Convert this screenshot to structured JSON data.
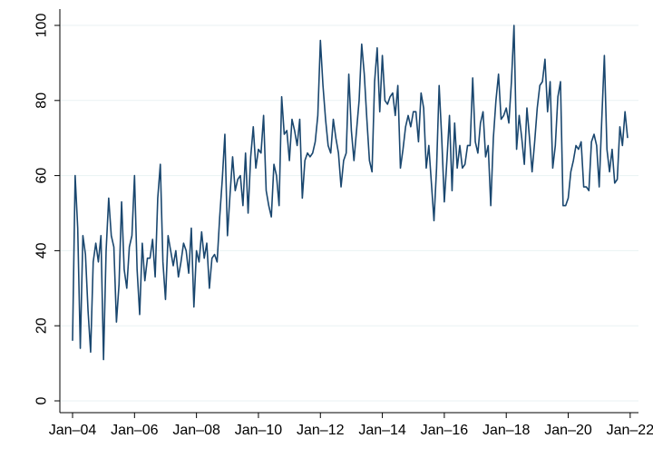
{
  "chart_data": {
    "type": "line",
    "title": "",
    "xlabel": "",
    "ylabel": "",
    "x_axis": {
      "kind": "date",
      "range": [
        "2004-01",
        "2022-05"
      ],
      "tick_labels": [
        "Jan–04",
        "Jan–06",
        "Jan–08",
        "Jan–10",
        "Jan–12",
        "Jan–14",
        "Jan–16",
        "Jan–18",
        "Jan–20",
        "Jan–22"
      ],
      "tick_dates": [
        "2004-01",
        "2006-01",
        "2008-01",
        "2010-01",
        "2012-01",
        "2014-01",
        "2016-01",
        "2018-01",
        "2020-01",
        "2022-01"
      ]
    },
    "y_axis": {
      "range": [
        0,
        100
      ],
      "tick_values": [
        0,
        20,
        40,
        60,
        80,
        100
      ],
      "tick_labels": [
        "0",
        "20",
        "40",
        "60",
        "80",
        "100"
      ]
    },
    "grid": true,
    "legend": "none",
    "colors": {
      "series": "#1a476f",
      "grid": "#eaf2f3",
      "axis": "#000000",
      "background": "#ffffff"
    },
    "series": [
      {
        "start": "2004-01",
        "frequency": "monthly",
        "values": [
          16,
          60,
          46,
          14,
          44,
          39,
          24,
          13,
          37,
          42,
          37,
          44,
          11,
          40,
          54,
          44,
          41,
          21,
          31,
          53,
          35,
          30,
          41,
          44,
          60,
          35,
          23,
          42,
          32,
          38,
          38,
          43,
          33,
          54,
          63,
          37,
          27,
          44,
          40,
          36,
          40,
          33,
          37,
          42,
          40,
          34,
          46,
          25,
          40,
          37,
          45,
          38,
          42,
          30,
          38,
          39,
          37,
          49,
          59,
          71,
          44,
          55,
          65,
          56,
          59,
          60,
          52,
          66,
          50,
          65,
          73,
          62,
          67,
          66,
          76,
          56,
          52,
          49,
          63,
          60,
          52,
          81,
          71,
          72,
          64,
          75,
          72,
          68,
          75,
          54,
          64,
          66,
          65,
          66,
          69,
          76,
          96,
          84,
          75,
          68,
          66,
          75,
          70,
          66,
          57,
          64,
          66,
          87,
          72,
          64,
          72,
          80,
          95,
          87,
          75,
          64,
          61,
          85,
          94,
          77,
          92,
          80,
          79,
          81,
          82,
          76,
          84,
          62,
          67,
          73,
          76,
          73,
          77,
          77,
          69,
          82,
          78,
          62,
          68,
          58,
          48,
          62,
          84,
          70,
          53,
          64,
          76,
          56,
          74,
          62,
          68,
          62,
          63,
          68,
          68,
          86,
          69,
          66,
          74,
          77,
          65,
          68,
          52,
          70,
          80,
          87,
          75,
          76,
          78,
          74,
          85,
          100,
          67,
          76,
          70,
          63,
          78,
          70,
          61,
          69,
          78,
          84,
          85,
          91,
          77,
          85,
          62,
          68,
          81,
          85,
          52,
          52,
          54,
          61,
          64,
          68,
          67,
          69,
          57,
          57,
          56,
          69,
          71,
          68,
          57,
          75,
          92,
          67,
          61,
          67,
          58,
          59,
          73,
          68,
          77,
          70
        ]
      }
    ]
  }
}
